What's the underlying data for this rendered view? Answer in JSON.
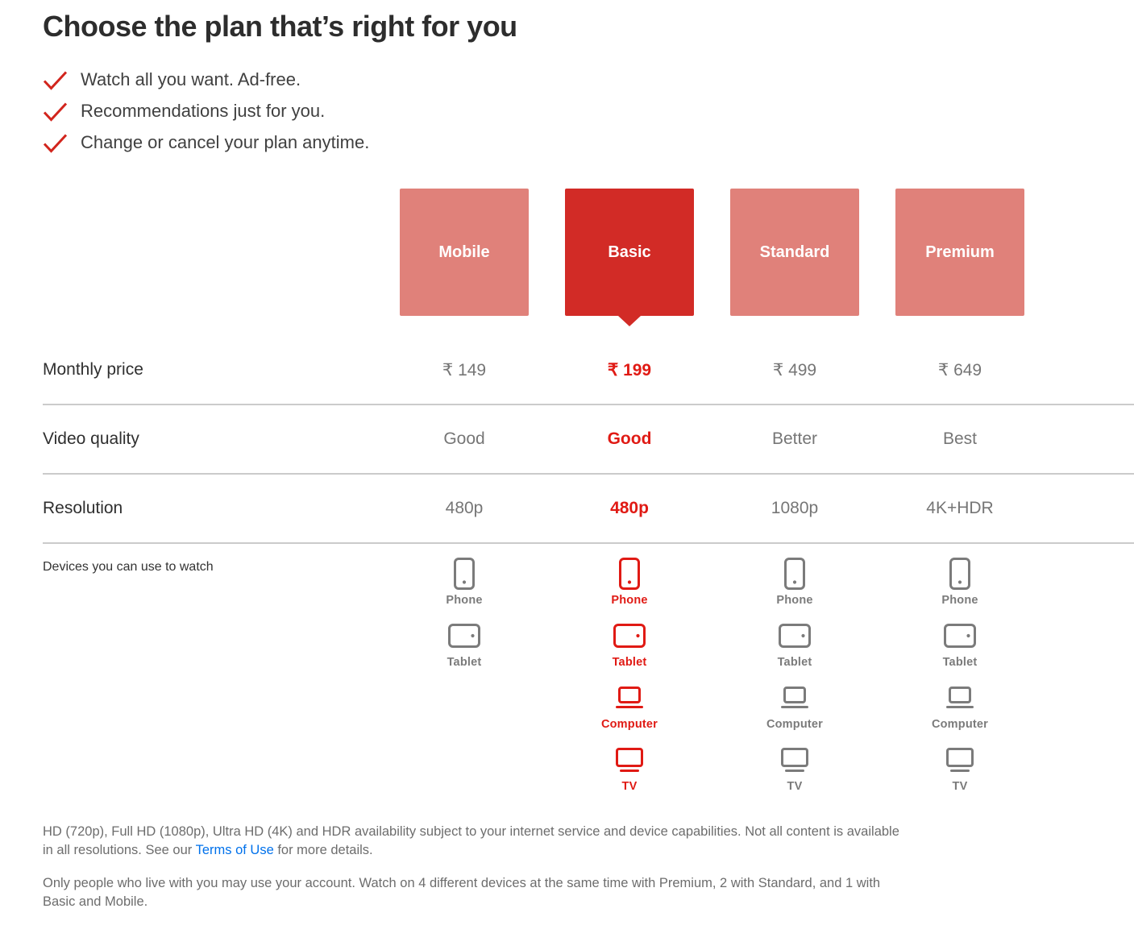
{
  "page": {
    "title": "Choose the plan that’s right for you",
    "benefits": [
      "Watch all you want. Ad-free.",
      "Recommendations just for you.",
      "Change or cancel your plan anytime."
    ],
    "row_labels": {
      "price": "Monthly price",
      "video_quality": "Video quality",
      "resolution": "Resolution",
      "devices": "Devices you can use to watch"
    },
    "plans": [
      {
        "name": "Mobile",
        "selected": false,
        "price": "₹ 149",
        "video_quality": "Good",
        "resolution": "480p",
        "devices": [
          {
            "label": "Phone",
            "icon": "phone-icon"
          },
          {
            "label": "Tablet",
            "icon": "tablet-icon"
          }
        ]
      },
      {
        "name": "Basic",
        "selected": true,
        "price": "₹ 199",
        "video_quality": "Good",
        "resolution": "480p",
        "devices": [
          {
            "label": "Phone",
            "icon": "phone-icon"
          },
          {
            "label": "Tablet",
            "icon": "tablet-icon"
          },
          {
            "label": "Computer",
            "icon": "computer-icon"
          },
          {
            "label": "TV",
            "icon": "tv-icon"
          }
        ]
      },
      {
        "name": "Standard",
        "selected": false,
        "price": "₹ 499",
        "video_quality": "Better",
        "resolution": "1080p",
        "devices": [
          {
            "label": "Phone",
            "icon": "phone-icon"
          },
          {
            "label": "Tablet",
            "icon": "tablet-icon"
          },
          {
            "label": "Computer",
            "icon": "computer-icon"
          },
          {
            "label": "TV",
            "icon": "tv-icon"
          }
        ]
      },
      {
        "name": "Premium",
        "selected": false,
        "price": "₹ 649",
        "video_quality": "Best",
        "resolution": "4K+HDR",
        "devices": [
          {
            "label": "Phone",
            "icon": "phone-icon"
          },
          {
            "label": "Tablet",
            "icon": "tablet-icon"
          },
          {
            "label": "Computer",
            "icon": "computer-icon"
          },
          {
            "label": "TV",
            "icon": "tv-icon"
          }
        ]
      }
    ],
    "footer": {
      "p1_before_link": "HD (720p), Full HD (1080p), Ultra HD (4K) and HDR availability subject to your internet service and device capabilities. Not all content is available in all resolutions. See our ",
      "link_text": "Terms of Use",
      "p1_after_link": " for more details.",
      "p2": "Only people who live with you may use your account. Watch on 4 different devices at the same time with Premium, 2 with Standard, and 1 with Basic and Mobile."
    },
    "colors": {
      "card_unselected": "#e0817a",
      "card_selected": "#d22b26",
      "accent_red": "#e01a14",
      "check_red": "#d2251d",
      "value_gray": "#767676",
      "divider_gray": "#cbcbcb",
      "link_blue": "#0071eb"
    }
  }
}
